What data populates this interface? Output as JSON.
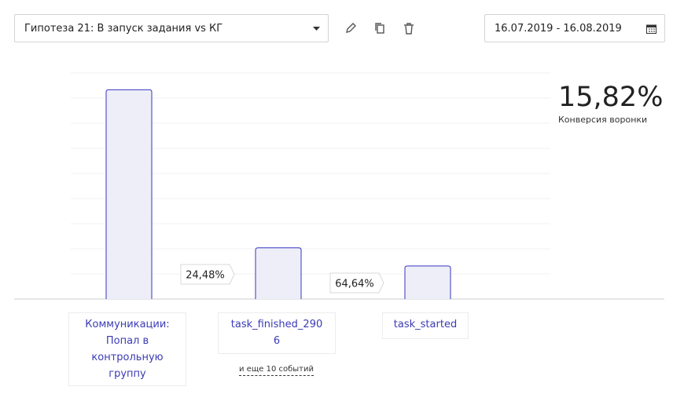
{
  "toolbar": {
    "funnel_select": "Гипотеза 21: В запуск задания vs КГ",
    "date_range": "16.07.2019 - 16.08.2019"
  },
  "chart_data": {
    "type": "bar",
    "categories": [
      "Коммуникации: Попал в контрольную группу",
      "task_finished_2906",
      "task_started"
    ],
    "values": [
      100,
      24.48,
      15.82
    ],
    "color": "#eeeef8",
    "stroke": "#3535c4",
    "step_conversion_labels": [
      "24,48%",
      "64,64%"
    ],
    "total_conversion_label": "15,82%",
    "total_conversion_caption": "Конверсия воронки",
    "more_events": "и еще 10 событий",
    "ylim": [
      0,
      108
    ],
    "yticks": [
      0,
      12,
      24,
      36,
      48,
      60,
      72,
      84,
      96,
      108
    ],
    "grid": true
  }
}
